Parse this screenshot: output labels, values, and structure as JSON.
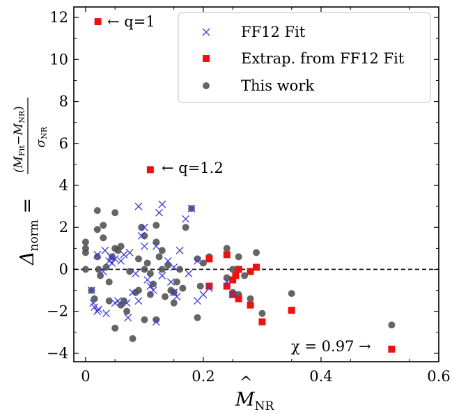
{
  "chart_data": {
    "type": "scatter",
    "xlabel": "M̂NR",
    "ylabel": "Δnorm = (M̂Fit − M̂NR) / σNR",
    "xlim": [
      -0.02,
      0.6
    ],
    "ylim": [
      -4.4,
      12.5
    ],
    "x_ticks": [
      0,
      0.2,
      0.4,
      0.6
    ],
    "x_tick_labels": [
      "0",
      "0.2",
      "0.4",
      "0.6"
    ],
    "y_ticks": [
      -4,
      -2,
      0,
      2,
      4,
      6,
      8,
      10,
      12
    ],
    "y_tick_labels": [
      "−4",
      "−2",
      "0",
      "2",
      "4",
      "6",
      "8",
      "10",
      "12"
    ],
    "grid": false,
    "legend_position": "top-right",
    "reference_line": {
      "y": 0,
      "style": "dashed",
      "color": "#000000"
    },
    "series": [
      {
        "name": "FF12 Fit",
        "marker": "x",
        "color": "#3b3bdc",
        "x": [
          0.01,
          0.013,
          0.015,
          0.02,
          0.02,
          0.022,
          0.03,
          0.033,
          0.035,
          0.04,
          0.043,
          0.045,
          0.05,
          0.05,
          0.055,
          0.06,
          0.065,
          0.07,
          0.072,
          0.075,
          0.08,
          0.085,
          0.09,
          0.09,
          0.095,
          0.1,
          0.1,
          0.105,
          0.11,
          0.115,
          0.12,
          0.12,
          0.125,
          0.13,
          0.13,
          0.14,
          0.145,
          0.15,
          0.15,
          0.155,
          0.16,
          0.17,
          0.175,
          0.18,
          0.19,
          0.19,
          0.2,
          0.21,
          0.24,
          0.25
        ],
        "y": [
          -1.0,
          -1.6,
          -1.8,
          -2.0,
          0.7,
          -1.9,
          -0.1,
          0.9,
          -2.1,
          0.4,
          0.6,
          0.3,
          0.5,
          -1.6,
          -1.5,
          0.4,
          0.7,
          -1.6,
          -2.3,
          0.8,
          -1.1,
          -0.2,
          3.0,
          -1.5,
          1.6,
          2.0,
          1.1,
          -0.5,
          -0.8,
          -1.0,
          -2.5,
          1.1,
          2.7,
          3.1,
          -0.3,
          0.4,
          -0.6,
          -1.1,
          0.1,
          -1.3,
          0.9,
          2.4,
          -0.2,
          2.9,
          -1.5,
          0.4,
          -1.2,
          -0.9,
          -0.6,
          -1.2
        ]
      },
      {
        "name": "Extrap. from FF12 Fit",
        "marker": "s",
        "color": "#ee1111",
        "x": [
          0.021,
          0.11,
          0.21,
          0.21,
          0.24,
          0.24,
          0.25,
          0.25,
          0.255,
          0.26,
          0.26,
          0.28,
          0.28,
          0.29,
          0.3,
          0.35,
          0.52
        ],
        "y": [
          11.8,
          4.75,
          0.5,
          -0.8,
          0.7,
          -0.8,
          -0.5,
          -1.2,
          -0.3,
          0.0,
          -1.4,
          -0.1,
          -1.7,
          0.1,
          -2.5,
          -1.95,
          -3.8
        ]
      },
      {
        "name": "This work",
        "marker": "o",
        "color": "#505050",
        "x": [
          0.0,
          0.0,
          0.0,
          0.0,
          0.01,
          0.015,
          0.02,
          0.02,
          0.02,
          0.022,
          0.025,
          0.03,
          0.03,
          0.035,
          0.04,
          0.04,
          0.045,
          0.05,
          0.05,
          0.05,
          0.055,
          0.06,
          0.06,
          0.065,
          0.07,
          0.075,
          0.08,
          0.085,
          0.09,
          0.09,
          0.095,
          0.1,
          0.1,
          0.1,
          0.105,
          0.11,
          0.11,
          0.115,
          0.12,
          0.12,
          0.12,
          0.125,
          0.13,
          0.13,
          0.135,
          0.14,
          0.145,
          0.15,
          0.15,
          0.155,
          0.16,
          0.165,
          0.17,
          0.18,
          0.19,
          0.19,
          0.195,
          0.2,
          0.21,
          0.24,
          0.24,
          0.25,
          0.25,
          0.26,
          0.26,
          0.27,
          0.28,
          0.29,
          0.3,
          0.35,
          0.52
        ],
        "y": [
          1.3,
          1.0,
          0.8,
          0.0,
          -1.0,
          -1.4,
          2.8,
          1.9,
          0.6,
          0.0,
          -0.3,
          2.1,
          1.5,
          0.1,
          -0.6,
          -1.5,
          0.6,
          2.7,
          1.0,
          -2.8,
          0.9,
          1.1,
          -1.7,
          -1.5,
          -2.0,
          -0.1,
          -3.3,
          -1.1,
          -1.0,
          0.5,
          2.0,
          1.6,
          0.0,
          -2.4,
          0.3,
          -0.2,
          -1.2,
          -0.7,
          2.1,
          1.3,
          -2.4,
          0.6,
          0.9,
          0.0,
          -1.3,
          0.2,
          -1.0,
          -1.1,
          -1.6,
          -0.6,
          0.0,
          -0.9,
          2.0,
          2.9,
          0.5,
          -2.3,
          -0.8,
          0.3,
          0.6,
          1.0,
          -0.4,
          0.0,
          -1.1,
          0.6,
          -1.2,
          -0.3,
          -1.4,
          0.8,
          -2.1,
          -1.15,
          -2.65
        ]
      }
    ],
    "annotations": [
      {
        "text": "← q=1",
        "x": 0.021,
        "y": 11.8
      },
      {
        "text": "← q=1.2",
        "x": 0.11,
        "y": 4.75
      },
      {
        "text": "χ = 0.97 →",
        "x": 0.52,
        "y": -3.8
      }
    ]
  }
}
